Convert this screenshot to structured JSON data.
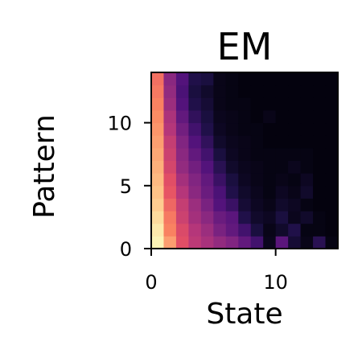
{
  "chart_data": {
    "type": "heatmap",
    "title": "EM",
    "xlabel": "State",
    "ylabel": "Pattern",
    "x_ticks": [
      0,
      10
    ],
    "y_ticks": [
      0,
      5,
      10
    ],
    "xlim": [
      0,
      15
    ],
    "ylim": [
      0,
      14
    ],
    "colormap": "magma",
    "value_range": [
      0,
      1
    ],
    "n_states": 15,
    "n_patterns": 14,
    "values_row0_bottom": [
      [
        0.98,
        0.8,
        0.62,
        0.52,
        0.47,
        0.42,
        0.38,
        0.3,
        0.22,
        0.05,
        0.28,
        0.1,
        0.04,
        0.16,
        0.03
      ],
      [
        0.96,
        0.74,
        0.6,
        0.5,
        0.44,
        0.36,
        0.3,
        0.22,
        0.12,
        0.04,
        0.08,
        0.14,
        0.03,
        0.03,
        0.02
      ],
      [
        0.93,
        0.72,
        0.56,
        0.46,
        0.4,
        0.32,
        0.28,
        0.14,
        0.08,
        0.06,
        0.12,
        0.05,
        0.08,
        0.03,
        0.02
      ],
      [
        0.9,
        0.68,
        0.54,
        0.44,
        0.36,
        0.26,
        0.2,
        0.1,
        0.06,
        0.04,
        0.08,
        0.06,
        0.03,
        0.02,
        0.02
      ],
      [
        0.88,
        0.64,
        0.5,
        0.4,
        0.32,
        0.24,
        0.14,
        0.08,
        0.05,
        0.03,
        0.06,
        0.04,
        0.08,
        0.02,
        0.02
      ],
      [
        0.86,
        0.62,
        0.46,
        0.38,
        0.3,
        0.2,
        0.12,
        0.06,
        0.04,
        0.03,
        0.04,
        0.03,
        0.06,
        0.02,
        0.02
      ],
      [
        0.84,
        0.58,
        0.42,
        0.34,
        0.26,
        0.16,
        0.08,
        0.05,
        0.04,
        0.03,
        0.03,
        0.05,
        0.03,
        0.02,
        0.02
      ],
      [
        0.82,
        0.56,
        0.4,
        0.3,
        0.22,
        0.12,
        0.06,
        0.04,
        0.03,
        0.03,
        0.03,
        0.03,
        0.03,
        0.02,
        0.02
      ],
      [
        0.8,
        0.54,
        0.38,
        0.26,
        0.18,
        0.08,
        0.05,
        0.04,
        0.03,
        0.02,
        0.02,
        0.02,
        0.02,
        0.02,
        0.02
      ],
      [
        0.78,
        0.5,
        0.34,
        0.22,
        0.14,
        0.06,
        0.04,
        0.03,
        0.03,
        0.02,
        0.02,
        0.02,
        0.02,
        0.02,
        0.02
      ],
      [
        0.76,
        0.48,
        0.3,
        0.18,
        0.12,
        0.05,
        0.04,
        0.03,
        0.02,
        0.04,
        0.02,
        0.02,
        0.02,
        0.02,
        0.02
      ],
      [
        0.74,
        0.44,
        0.26,
        0.14,
        0.1,
        0.04,
        0.03,
        0.03,
        0.02,
        0.02,
        0.02,
        0.02,
        0.02,
        0.02,
        0.02
      ],
      [
        0.72,
        0.42,
        0.24,
        0.12,
        0.08,
        0.04,
        0.03,
        0.02,
        0.02,
        0.02,
        0.02,
        0.02,
        0.02,
        0.02,
        0.02
      ],
      [
        0.7,
        0.4,
        0.26,
        0.14,
        0.12,
        0.04,
        0.03,
        0.02,
        0.02,
        0.02,
        0.02,
        0.02,
        0.02,
        0.02,
        0.02
      ]
    ]
  }
}
